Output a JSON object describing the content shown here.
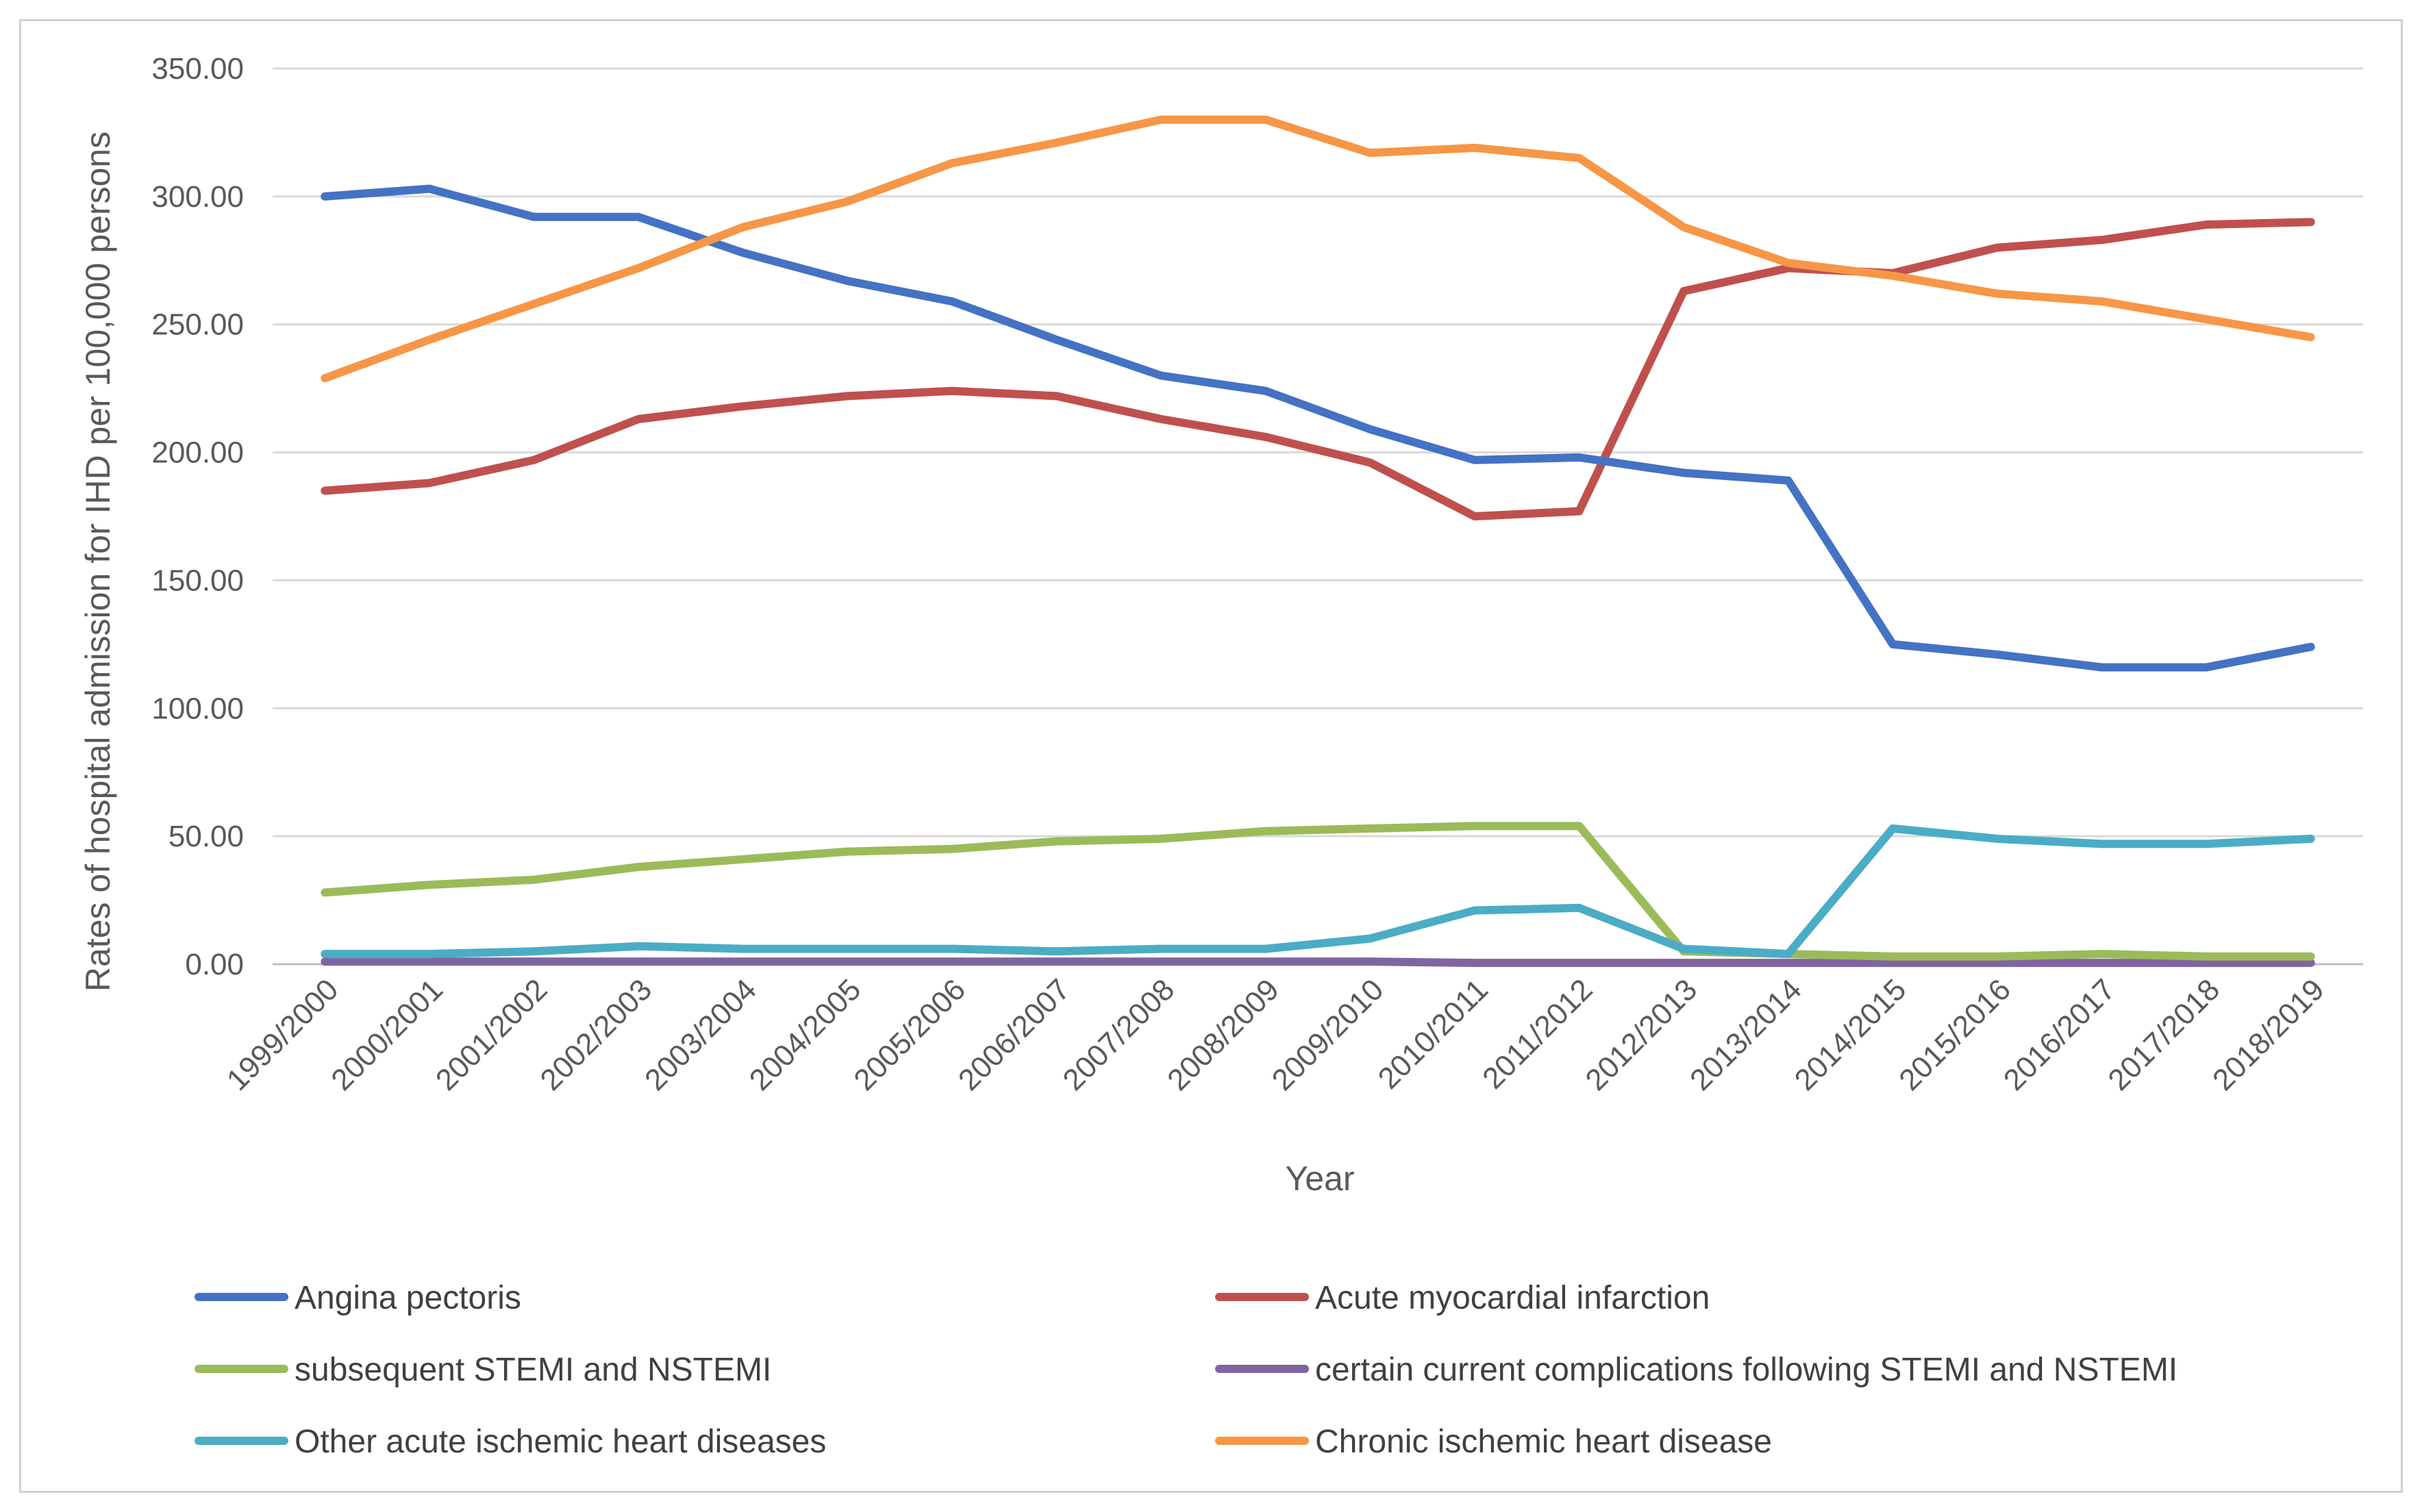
{
  "chart_data": {
    "type": "line",
    "title": "",
    "xlabel": "Year",
    "ylabel": "Rates of hospital admission for IHD per 100,000 persons",
    "ylim": [
      0,
      350
    ],
    "yticks": [
      "0.00",
      "50.00",
      "100.00",
      "150.00",
      "200.00",
      "250.00",
      "300.00",
      "350.00"
    ],
    "grid": true,
    "legend_position": "bottom",
    "categories": [
      "1999/2000",
      "2000/2001",
      "2001/2002",
      "2002/2003",
      "2003/2004",
      "2004/2005",
      "2005/2006",
      "2006/2007",
      "2007/2008",
      "2008/2009",
      "2009/2010",
      "2010/2011",
      "2011/2012",
      "2012/2013",
      "2013/2014",
      "2014/2015",
      "2015/2016",
      "2016/2017",
      "2017/2018",
      "2018/2019"
    ],
    "series": [
      {
        "name": "Angina pectoris",
        "color": "#4472C4",
        "values": [
          300,
          303,
          292,
          292,
          278,
          267,
          259,
          244,
          230,
          224,
          209,
          197,
          198,
          192,
          189,
          125,
          121,
          116,
          116,
          124
        ]
      },
      {
        "name": "Acute myocardial infarction",
        "color": "#C0504D",
        "values": [
          185,
          188,
          197,
          213,
          218,
          222,
          224,
          222,
          213,
          206,
          196,
          175,
          177,
          263,
          272,
          270,
          280,
          283,
          289,
          290
        ]
      },
      {
        "name": "subsequent STEMI and NSTEMI",
        "color": "#9BBB59",
        "values": [
          28,
          31,
          33,
          38,
          41,
          44,
          45,
          48,
          49,
          52,
          53,
          54,
          54,
          5,
          4,
          3,
          3,
          4,
          3,
          3
        ]
      },
      {
        "name": "certain current complications following STEMI and NSTEMI",
        "color": "#8064A2",
        "values": [
          1,
          1,
          1,
          1,
          1,
          1,
          1,
          1,
          1,
          1,
          1,
          0.5,
          0.5,
          0.5,
          0.5,
          0.5,
          0.5,
          0.5,
          0.5,
          0.5
        ]
      },
      {
        "name": "Other acute ischemic heart diseases",
        "color": "#4BACC6",
        "values": [
          4,
          4,
          5,
          7,
          6,
          6,
          6,
          5,
          6,
          6,
          10,
          21,
          22,
          6,
          4,
          53,
          49,
          47,
          47,
          49
        ]
      },
      {
        "name": "Chronic ischemic heart disease",
        "color": "#F79646",
        "values": [
          229,
          244,
          258,
          272,
          288,
          298,
          313,
          321,
          330,
          330,
          317,
          319,
          315,
          288,
          274,
          269,
          262,
          259,
          252,
          245
        ]
      }
    ]
  }
}
